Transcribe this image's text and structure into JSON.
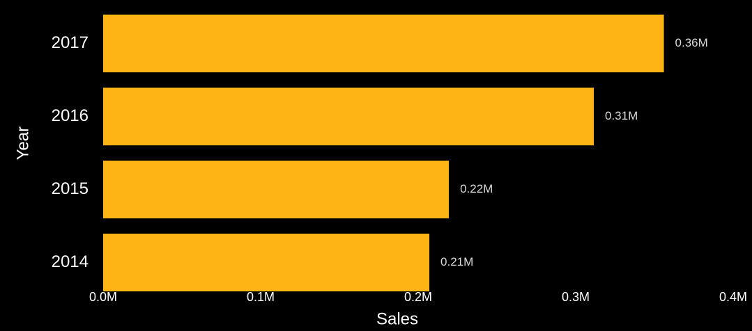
{
  "chart_data": {
    "type": "hbar",
    "x_label": "Sales",
    "y_label": "Year",
    "categories": [
      "2017",
      "2016",
      "2015",
      "2014"
    ],
    "values": [
      356000,
      311500,
      219500,
      207100
    ],
    "value_labels": [
      "0.36M",
      "0.31M",
      "0.22M",
      "0.21M"
    ],
    "color": "#fdb515",
    "xlim": [
      0,
      400000
    ],
    "xticks": [
      {
        "value": 0,
        "label": "0.0M"
      },
      {
        "value": 100000,
        "label": "0.1M"
      },
      {
        "value": 200000,
        "label": "0.2M"
      },
      {
        "value": 300000,
        "label": "0.3M"
      },
      {
        "value": 400000,
        "label": "0.4M"
      }
    ],
    "grid": false
  }
}
